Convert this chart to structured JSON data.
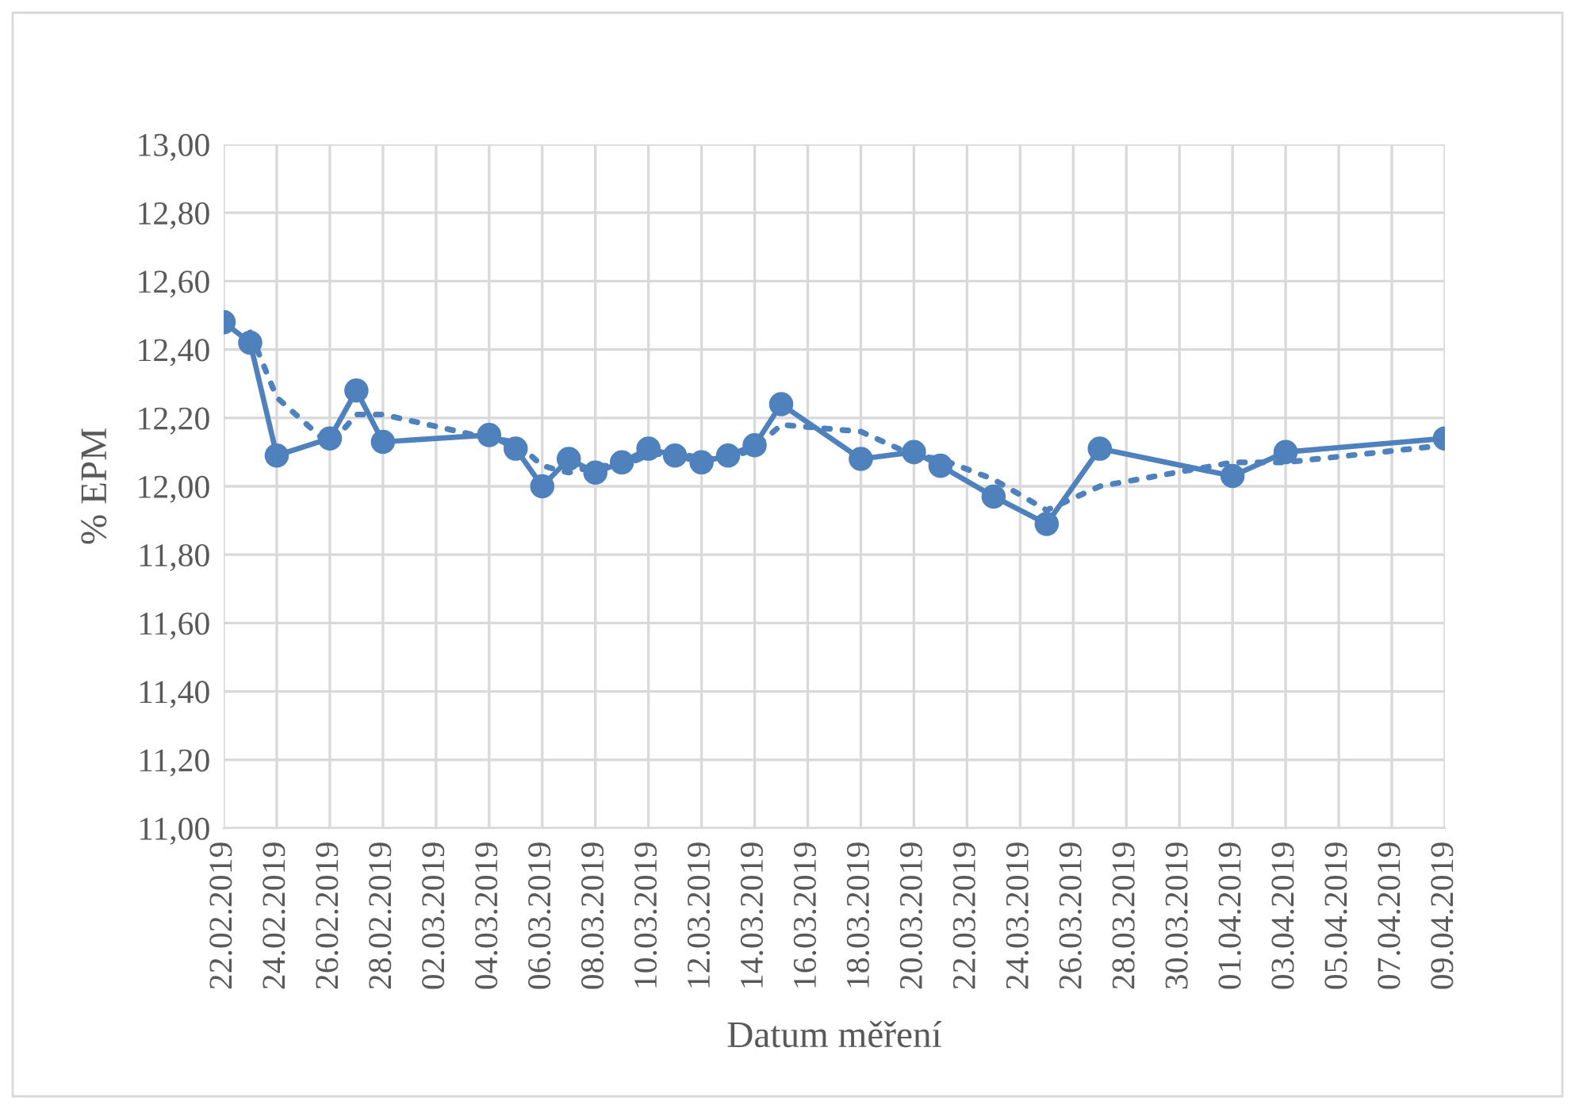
{
  "chart_data": {
    "type": "line",
    "xlabel": "Datum měření",
    "ylabel": "% EPM",
    "x": [
      "2019-02-22",
      "2019-02-23",
      "2019-02-24",
      "2019-02-26",
      "2019-02-27",
      "2019-02-28",
      "2019-03-04",
      "2019-03-05",
      "2019-03-06",
      "2019-03-07",
      "2019-03-08",
      "2019-03-09",
      "2019-03-10",
      "2019-03-11",
      "2019-03-12",
      "2019-03-13",
      "2019-03-14",
      "2019-03-15",
      "2019-03-18",
      "2019-03-20",
      "2019-03-21",
      "2019-03-23",
      "2019-03-25",
      "2019-03-27",
      "2019-04-01",
      "2019-04-03",
      "2019-04-09"
    ],
    "series": [
      {
        "color": "#4f81bd",
        "marker": "circle",
        "line_style": "solid",
        "values": [
          12.48,
          12.42,
          12.09,
          12.14,
          12.28,
          12.13,
          12.15,
          12.11,
          12.0,
          12.08,
          12.04,
          12.07,
          12.11,
          12.09,
          12.07,
          12.09,
          12.12,
          12.24,
          12.08,
          12.1,
          12.06,
          11.97,
          11.89,
          12.11,
          12.03,
          12.1,
          12.14
        ]
      },
      {
        "type": "line",
        "color": "#4f81bd",
        "marker": "none",
        "line_style": "dotted",
        "x": [
          "2019-02-23",
          "2019-02-24",
          "2019-02-26",
          "2019-02-27",
          "2019-02-28",
          "2019-03-04",
          "2019-03-05",
          "2019-03-06",
          "2019-03-07",
          "2019-03-08",
          "2019-03-09",
          "2019-03-10",
          "2019-03-11",
          "2019-03-12",
          "2019-03-13",
          "2019-03-14",
          "2019-03-15",
          "2019-03-18",
          "2019-03-20",
          "2019-03-21",
          "2019-03-23",
          "2019-03-25",
          "2019-03-27",
          "2019-04-01",
          "2019-04-03",
          "2019-04-09"
        ],
        "values": [
          12.45,
          12.26,
          12.12,
          12.21,
          12.21,
          12.14,
          12.13,
          12.06,
          12.04,
          12.06,
          12.06,
          12.09,
          12.1,
          12.08,
          12.08,
          12.11,
          12.18,
          12.16,
          12.09,
          12.08,
          12.02,
          11.93,
          12.0,
          12.07,
          12.07,
          12.12
        ]
      }
    ],
    "xlim": [
      "2019-02-22",
      "2019-04-09"
    ],
    "xticks": [
      {
        "value": "2019-02-22",
        "label": "22.02.2019"
      },
      {
        "value": "2019-02-24",
        "label": "24.02.2019"
      },
      {
        "value": "2019-02-26",
        "label": "26.02.2019"
      },
      {
        "value": "2019-02-28",
        "label": "28.02.2019"
      },
      {
        "value": "2019-03-02",
        "label": "02.03.2019"
      },
      {
        "value": "2019-03-04",
        "label": "04.03.2019"
      },
      {
        "value": "2019-03-06",
        "label": "06.03.2019"
      },
      {
        "value": "2019-03-08",
        "label": "08.03.2019"
      },
      {
        "value": "2019-03-10",
        "label": "10.03.2019"
      },
      {
        "value": "2019-03-12",
        "label": "12.03.2019"
      },
      {
        "value": "2019-03-14",
        "label": "14.03.2019"
      },
      {
        "value": "2019-03-16",
        "label": "16.03.2019"
      },
      {
        "value": "2019-03-18",
        "label": "18.03.2019"
      },
      {
        "value": "2019-03-20",
        "label": "20.03.2019"
      },
      {
        "value": "2019-03-22",
        "label": "22.03.2019"
      },
      {
        "value": "2019-03-24",
        "label": "24.03.2019"
      },
      {
        "value": "2019-03-26",
        "label": "26.03.2019"
      },
      {
        "value": "2019-03-28",
        "label": "28.03.2019"
      },
      {
        "value": "2019-03-30",
        "label": "30.03.2019"
      },
      {
        "value": "2019-04-01",
        "label": "01.04.2019"
      },
      {
        "value": "2019-04-03",
        "label": "03.04.2019"
      },
      {
        "value": "2019-04-05",
        "label": "05.04.2019"
      },
      {
        "value": "2019-04-07",
        "label": "07.04.2019"
      },
      {
        "value": "2019-04-09",
        "label": "09.04.2019"
      }
    ],
    "ylim": [
      11.0,
      13.0
    ],
    "yticks": [
      {
        "value": 11.0,
        "label": "11,00"
      },
      {
        "value": 11.2,
        "label": "11,20"
      },
      {
        "value": 11.4,
        "label": "11,40"
      },
      {
        "value": 11.6,
        "label": "11,60"
      },
      {
        "value": 11.8,
        "label": "11,80"
      },
      {
        "value": 12.0,
        "label": "12,00"
      },
      {
        "value": 12.2,
        "label": "12,20"
      },
      {
        "value": 12.4,
        "label": "12,40"
      },
      {
        "value": 12.6,
        "label": "12,60"
      },
      {
        "value": 12.8,
        "label": "12,80"
      },
      {
        "value": 13.0,
        "label": "13,00"
      }
    ],
    "grid": true,
    "legend": false
  }
}
